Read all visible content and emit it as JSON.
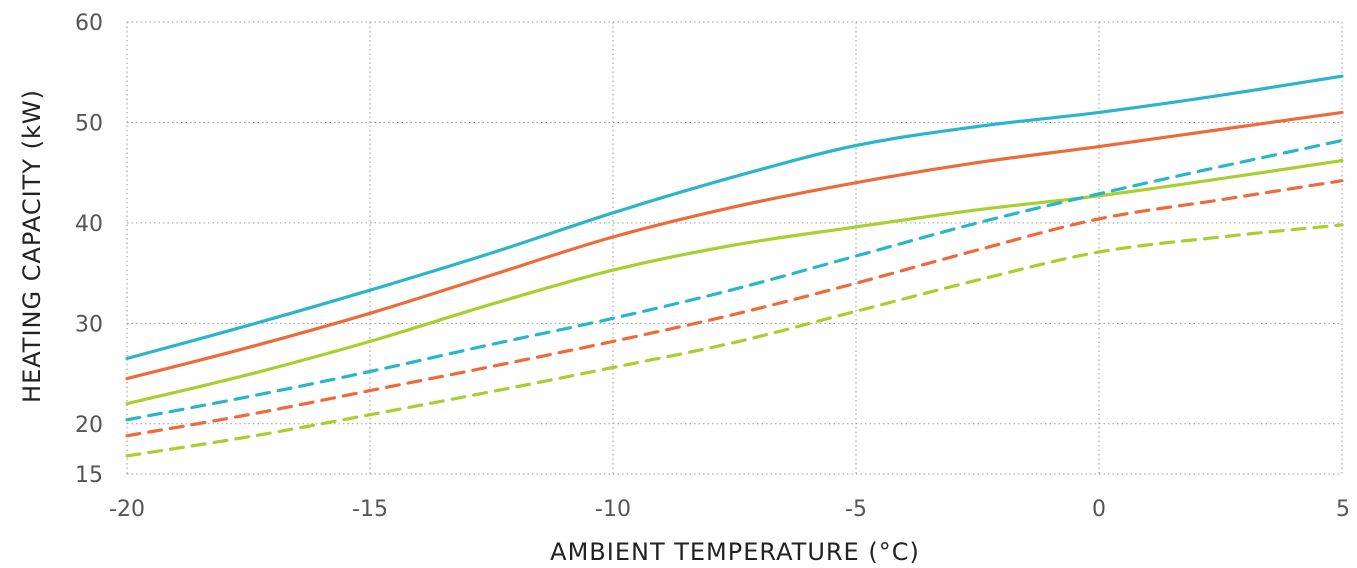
{
  "chart_data": {
    "type": "line",
    "title": "",
    "xlabel": "AMBIENT TEMPERATURE (°C)",
    "ylabel": "HEATING CAPACITY (kW)",
    "xlim": [
      -20,
      5
    ],
    "ylim": [
      15,
      60
    ],
    "xticks": [
      "-20",
      "-15",
      "-10",
      "-5",
      "0",
      "5"
    ],
    "xtick_values": [
      -20,
      -15,
      -10,
      -5,
      0,
      5
    ],
    "yticks": [
      "15",
      "20",
      "30",
      "40",
      "50",
      "60"
    ],
    "ytick_values": [
      15,
      20,
      30,
      40,
      50,
      60
    ],
    "grid": true,
    "legend": "none",
    "x": [
      -20,
      -17.5,
      -15,
      -12.5,
      -10,
      -7.5,
      -5,
      -2.5,
      0,
      2.5,
      5
    ],
    "series": [
      {
        "color": "#2bb5cc",
        "style": "solid",
        "values": [
          26.5,
          29.8,
          33.3,
          37.0,
          41.0,
          44.6,
          47.7,
          49.6,
          51.0,
          52.7,
          54.6
        ]
      },
      {
        "color": "#ef6a3a",
        "style": "solid",
        "values": [
          24.5,
          27.6,
          31.0,
          34.8,
          38.6,
          41.6,
          44.0,
          46.0,
          47.6,
          49.3,
          51.0
        ]
      },
      {
        "color": "#a7cf2e",
        "style": "solid",
        "values": [
          22.0,
          24.9,
          28.2,
          31.9,
          35.3,
          37.8,
          39.6,
          41.3,
          42.7,
          44.4,
          46.2
        ]
      },
      {
        "color": "#2bb5cc",
        "style": "dashed",
        "values": [
          20.4,
          22.7,
          25.2,
          27.9,
          30.5,
          33.4,
          36.7,
          40.0,
          42.9,
          45.6,
          48.2
        ]
      },
      {
        "color": "#ef6a3a",
        "style": "dashed",
        "values": [
          18.8,
          20.9,
          23.3,
          25.7,
          28.2,
          30.9,
          34.0,
          37.3,
          40.4,
          42.3,
          44.2
        ]
      },
      {
        "color": "#a7cf2e",
        "style": "dashed",
        "values": [
          16.8,
          18.7,
          20.9,
          23.2,
          25.6,
          28.1,
          31.2,
          34.3,
          37.1,
          38.6,
          39.8
        ]
      }
    ]
  }
}
